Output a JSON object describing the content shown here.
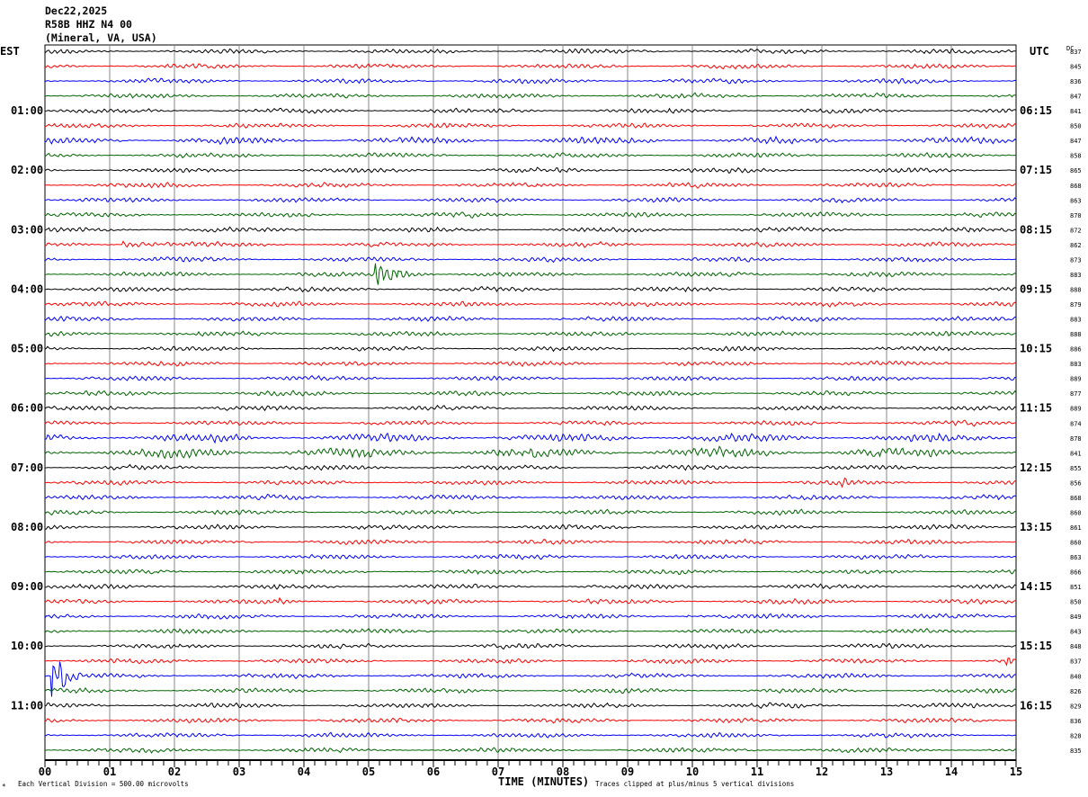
{
  "header": {
    "date": "Dec22,2025",
    "station": "R58B HHZ N4 00",
    "location": "(Mineral, VA, USA)"
  },
  "left_tz": "EST",
  "right_tz": "UTC",
  "dc_label": "DC",
  "footer": {
    "scale": "Each Vertical Division =  500.00 microvolts",
    "xlabel": "TIME (MINUTES)",
    "clip": "Traces clipped at plus/minus 5 vertical divisions",
    "corner_mark": "*"
  },
  "chart_data": {
    "type": "line",
    "title": "R58B HHZ N4 00 helicorder",
    "xlabel": "TIME (MINUTES)",
    "xlim": [
      0,
      15
    ],
    "x_ticks": [
      "00",
      "01",
      "02",
      "03",
      "04",
      "05",
      "06",
      "07",
      "08",
      "09",
      "10",
      "11",
      "12",
      "13",
      "14",
      "15"
    ],
    "trace_colors": [
      "#000000",
      "#ff0000",
      "#0000ff",
      "#006400"
    ],
    "trace_minutes": 15,
    "left_labels": [
      {
        "row": 4,
        "text": "01:00"
      },
      {
        "row": 8,
        "text": "02:00"
      },
      {
        "row": 12,
        "text": "03:00"
      },
      {
        "row": 16,
        "text": "04:00"
      },
      {
        "row": 20,
        "text": "05:00"
      },
      {
        "row": 24,
        "text": "06:00"
      },
      {
        "row": 28,
        "text": "07:00"
      },
      {
        "row": 32,
        "text": "08:00"
      },
      {
        "row": 36,
        "text": "09:00"
      },
      {
        "row": 40,
        "text": "10:00"
      },
      {
        "row": 44,
        "text": "11:00"
      }
    ],
    "right_labels": [
      {
        "row": 4,
        "text": "06:15"
      },
      {
        "row": 8,
        "text": "07:15"
      },
      {
        "row": 12,
        "text": "08:15"
      },
      {
        "row": 16,
        "text": "09:15"
      },
      {
        "row": 20,
        "text": "10:15"
      },
      {
        "row": 24,
        "text": "11:15"
      },
      {
        "row": 28,
        "text": "12:15"
      },
      {
        "row": 32,
        "text": "13:15"
      },
      {
        "row": 36,
        "text": "14:15"
      },
      {
        "row": 40,
        "text": "15:15"
      },
      {
        "row": 44,
        "text": "16:15"
      }
    ],
    "dc_offsets": [
      "837",
      "845",
      "836",
      "847",
      "841",
      "850",
      "847",
      "858",
      "865",
      "868",
      "863",
      "870",
      "872",
      "862",
      "873",
      "883",
      "888",
      "879",
      "883",
      "888",
      "886",
      "883",
      "889",
      "877",
      "889",
      "874",
      "878",
      "841",
      "855",
      "856",
      "868",
      "860",
      "861",
      "860",
      "863",
      "866",
      "851",
      "850",
      "849",
      "843",
      "848",
      "837",
      "840",
      "826",
      "829",
      "836",
      "828",
      "835"
    ],
    "noise_level_divisions": {
      "default": 0.35,
      "row_6": 0.5,
      "row_26": 0.6,
      "row_27": 0.75
    },
    "events": [
      {
        "row": 15,
        "minute": 5.1,
        "amplitude_div": 2.2,
        "duration_min": 0.9
      },
      {
        "row": 42,
        "minute": 0.1,
        "amplitude_div": 5,
        "duration_min": 0.5
      },
      {
        "row": 41,
        "minute": 14.85,
        "amplitude_div": 1.6,
        "duration_min": 0.15
      },
      {
        "row": 29,
        "minute": 12.3,
        "amplitude_div": 0.9,
        "duration_min": 0.3
      },
      {
        "row": 13,
        "minute": 1.2,
        "amplitude_div": 0.6,
        "duration_min": 1.2
      },
      {
        "row": 38,
        "minute": 9.9,
        "amplitude_div": 0.7,
        "duration_min": 0.1
      },
      {
        "row": 37,
        "minute": 3.6,
        "amplitude_div": 0.6,
        "duration_min": 0.2
      }
    ]
  }
}
